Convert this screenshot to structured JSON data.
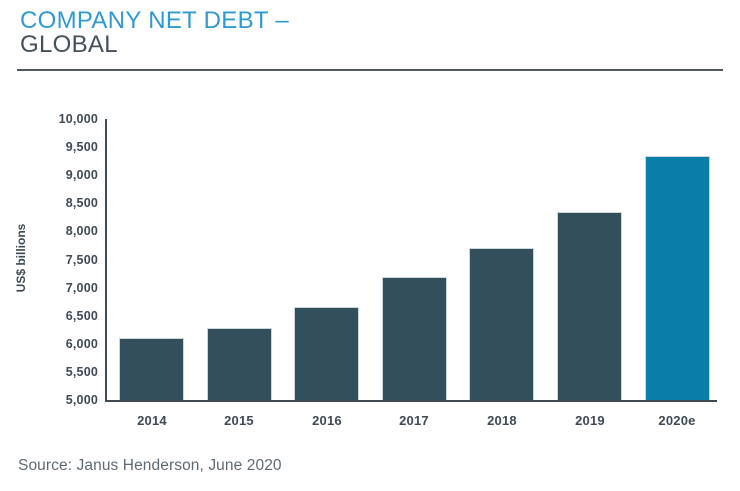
{
  "header": {
    "title_line1": "COMPANY NET DEBT –",
    "title_line2": "GLOBAL"
  },
  "footer": {
    "source": "Source: Janus Henderson, June 2020"
  },
  "chart_data": {
    "type": "bar",
    "title": "COMPANY NET DEBT – GLOBAL",
    "xlabel": "",
    "ylabel": "US$ billions",
    "ylim": [
      5000,
      10000
    ],
    "ytick_interval": 500,
    "ytick_labels": [
      "10,000",
      "9,500",
      "9,000",
      "8,500",
      "8,000",
      "7,500",
      "7,000",
      "6,500",
      "6,000",
      "5,500",
      "5,000"
    ],
    "categories": [
      "2014",
      "2015",
      "2016",
      "2017",
      "2018",
      "2019",
      "2020e"
    ],
    "values": [
      6110,
      6290,
      6660,
      7180,
      7710,
      8350,
      9350
    ],
    "grid": false,
    "legend": false,
    "highlight_index": 6,
    "colors": {
      "bar_default": "#344f5c",
      "bar_highlight": "#0b7da9",
      "axis": "#3e4a54",
      "title_accent": "#2f9ad2",
      "title_dark": "#45505b",
      "tick_text": "#3e4a54",
      "source_text": "#5e6a73"
    }
  }
}
